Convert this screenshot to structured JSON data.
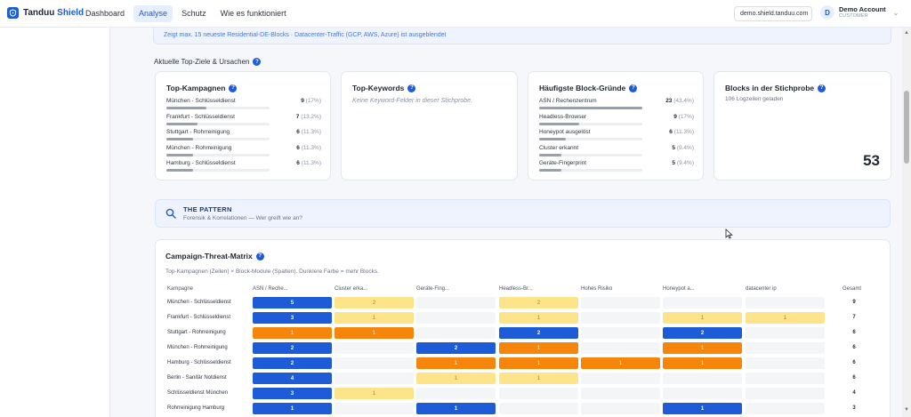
{
  "brand": {
    "name_part1": "Tanduu",
    "name_part2": "Shield",
    "accent": "#1e5bd6"
  },
  "nav": [
    {
      "label": "Dashboard",
      "active": false
    },
    {
      "label": "Analyse",
      "active": true
    },
    {
      "label": "Schutz",
      "active": false
    },
    {
      "label": "Wie es funktioniert",
      "active": false
    }
  ],
  "domain_select": {
    "value": "demo.shield.tanduu.com"
  },
  "account": {
    "initial": "D",
    "name": "Demo Account",
    "role": "CUSTOMER"
  },
  "info_banner": "Zeigt max. 15 neueste Residential-DE-Blocks · Datacenter-Traffic (GCP, AWS, Azure) ist ausgeblendet",
  "section": {
    "title": "Aktuelle Top-Ziele & Ursachen",
    "icon": "help-icon"
  },
  "cards": {
    "top_campaigns": {
      "title": "Top-Kampagnen",
      "rows": [
        {
          "label": "München - Schlüsseldienst",
          "count": "9",
          "pct": "(17%)",
          "share": 0.17
        },
        {
          "label": "Frankfurt - Schlüsseldienst",
          "count": "7",
          "pct": "(13.2%)",
          "share": 0.132
        },
        {
          "label": "Stuttgart - Rohrreinigung",
          "count": "6",
          "pct": "(11.3%)",
          "share": 0.113
        },
        {
          "label": "München - Rohrreinigung",
          "count": "6",
          "pct": "(11.3%)",
          "share": 0.113
        },
        {
          "label": "Hamburg - Schlüsseldienst",
          "count": "6",
          "pct": "(11.3%)",
          "share": 0.113
        }
      ]
    },
    "top_keywords": {
      "title": "Top-Keywords",
      "empty": "Keine Keyword-Felder in dieser Stichprobe."
    },
    "block_reasons": {
      "title": "Häufigste Block-Gründe",
      "rows": [
        {
          "label": "ASN / Rechenzentrum",
          "count": "23",
          "pct": "(43.4%)",
          "share": 0.434
        },
        {
          "label": "Headless-Browser",
          "count": "9",
          "pct": "(17%)",
          "share": 0.17
        },
        {
          "label": "Honeypot ausgelöst",
          "count": "6",
          "pct": "(11.3%)",
          "share": 0.113
        },
        {
          "label": "Cluster erkannt",
          "count": "5",
          "pct": "(9.4%)",
          "share": 0.094
        },
        {
          "label": "Geräte-Fingerprint",
          "count": "5",
          "pct": "(9.4%)",
          "share": 0.094
        }
      ]
    },
    "blocks_sample": {
      "title": "Blocks in der Stichprobe",
      "sub": "106 Logzeilen geladen",
      "value": "53"
    }
  },
  "pattern": {
    "title": "THE PATTERN",
    "subtitle": "Forensik & Korrelationen — Wer greift wie an?"
  },
  "matrix": {
    "title": "Campaign-Threat-Matrix",
    "subtitle": "Top-Kampagnen (Zeilen) × Block-Module (Spalten). Dunklere Farbe = mehr Blocks.",
    "row_header": "Kampagne",
    "total_header": "Gesamt",
    "columns": [
      "ASN / Reche...",
      "Cluster erka...",
      "Geräte-Fing...",
      "Headless-Br...",
      "Hohes Risiko",
      "Honeypot a...",
      "datacenter ip"
    ],
    "colors": {
      "high": "#1e5bd6",
      "mid": "#f5850b",
      "low": "#fde38a",
      "empty": "#f4f5f7"
    },
    "rows": [
      {
        "label": "München - Schlüsseldienst",
        "cells": [
          5,
          2,
          0,
          2,
          0,
          0,
          0
        ],
        "total": "9"
      },
      {
        "label": "Frankfurt - Schlüsseldienst",
        "cells": [
          3,
          1,
          0,
          1,
          0,
          1,
          1
        ],
        "total": "7"
      },
      {
        "label": "Stuttgart - Rohrreinigung",
        "cells": [
          1,
          1,
          0,
          2,
          0,
          2,
          0
        ],
        "total": "6"
      },
      {
        "label": "München - Rohrreinigung",
        "cells": [
          2,
          0,
          2,
          1,
          0,
          1,
          0
        ],
        "total": "6"
      },
      {
        "label": "Hamburg - Schlüsseldienst",
        "cells": [
          2,
          0,
          1,
          1,
          1,
          1,
          0
        ],
        "total": "6"
      },
      {
        "label": "Berlin - Sanitär Notdienst",
        "cells": [
          4,
          0,
          1,
          1,
          0,
          0,
          0
        ],
        "total": "6"
      },
      {
        "label": "Schlüsseldienst München",
        "cells": [
          3,
          1,
          0,
          0,
          0,
          0,
          0
        ],
        "total": "4"
      },
      {
        "label": "Rohrreinigung Hamburg",
        "cells": [
          1,
          0,
          1,
          0,
          0,
          1,
          0
        ],
        "total": "3"
      }
    ],
    "cell_styles": [
      [
        "high",
        "low",
        "empty",
        "low",
        "empty",
        "empty",
        "empty"
      ],
      [
        "high",
        "low",
        "empty",
        "low",
        "empty",
        "low",
        "low"
      ],
      [
        "mid",
        "mid",
        "empty",
        "high",
        "empty",
        "high",
        "empty"
      ],
      [
        "high",
        "empty",
        "high",
        "mid",
        "empty",
        "mid",
        "empty"
      ],
      [
        "high",
        "empty",
        "mid",
        "mid",
        "mid",
        "mid",
        "empty"
      ],
      [
        "high",
        "empty",
        "low",
        "low",
        "empty",
        "empty",
        "empty"
      ],
      [
        "high",
        "low",
        "empty",
        "empty",
        "empty",
        "empty",
        "empty"
      ],
      [
        "high",
        "empty",
        "high",
        "empty",
        "empty",
        "high",
        "empty"
      ]
    ]
  }
}
